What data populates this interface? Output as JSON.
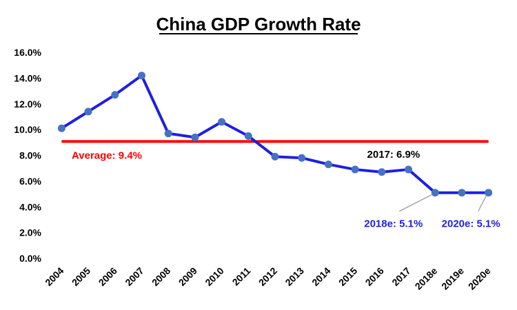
{
  "chart_data": {
    "type": "line",
    "title": "China GDP Growth Rate",
    "xlabel": "",
    "ylabel": "",
    "ylim": [
      0,
      16
    ],
    "yticks": [
      "0.0%",
      "2.0%",
      "4.0%",
      "6.0%",
      "8.0%",
      "10.0%",
      "12.0%",
      "14.0%",
      "16.0%"
    ],
    "grid": false,
    "categories": [
      "2004",
      "2005",
      "2006",
      "2007",
      "2008",
      "2009",
      "2010",
      "2011",
      "2012",
      "2013",
      "2014",
      "2015",
      "2016",
      "2017",
      "2018e",
      "2019e",
      "2020e"
    ],
    "series": [
      {
        "name": "GDP Growth Rate",
        "values": [
          10.1,
          11.4,
          12.7,
          14.2,
          9.7,
          9.4,
          10.6,
          9.5,
          7.9,
          7.8,
          7.3,
          6.9,
          6.7,
          6.9,
          5.1,
          5.1,
          5.1
        ],
        "color": "#1f1fe0",
        "marker_color": "#4472c4"
      }
    ],
    "average": {
      "value": 9.4,
      "label": "Average: 9.4%",
      "color": "#ff0000"
    },
    "annotations": [
      {
        "text": "2017: 6.9%",
        "category": "2017",
        "color": "#000000"
      },
      {
        "text": "2018e: 5.1%",
        "category": "2018e",
        "color": "#1f1fe0"
      },
      {
        "text": "2020e: 5.1%",
        "category": "2020e",
        "color": "#1f1fe0"
      }
    ]
  }
}
